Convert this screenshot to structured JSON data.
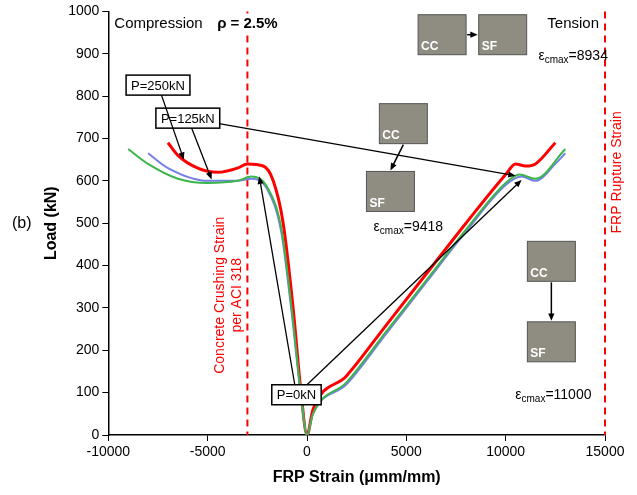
{
  "chart_data": {
    "type": "line",
    "title": "ρ = 2.5%",
    "panel": "(b)",
    "x_label": "FRP Strain (μmm/mm)",
    "y_label": "Load (kN)",
    "xlim": [
      -10000,
      15000
    ],
    "xticks": [
      -10000,
      -5000,
      0,
      5000,
      10000,
      15000
    ],
    "ylim": [
      0,
      1000
    ],
    "yticks": [
      0,
      100,
      200,
      300,
      400,
      500,
      600,
      700,
      800,
      900,
      1000
    ],
    "grid": false,
    "corner_labels": {
      "left": "Compression",
      "right": "Tension"
    },
    "series": [
      {
        "name": "P=0kN",
        "color": "#3cb54a",
        "x": [
          -9000,
          -8000,
          -6500,
          -5000,
          -3500,
          -2800,
          -2000,
          -1300,
          -800,
          -300,
          0,
          300,
          2000,
          4000,
          6000,
          8000,
          10000,
          10700,
          11500,
          13000
        ],
        "values": [
          675,
          640,
          605,
          595,
          600,
          610,
          585,
          490,
          310,
          95,
          0,
          50,
          125,
          245,
          365,
          485,
          595,
          615,
          605,
          675
        ],
        "name_at": [
          -530,
          95
        ],
        "pointers": [
          [
            -2400,
            610
          ],
          [
            10800,
            602
          ]
        ]
      },
      {
        "name": "P=125kN",
        "color": "#7480e6",
        "x": [
          -8000,
          -7000,
          -5000,
          -3500,
          -2800,
          -2000,
          -1300,
          -800,
          -300,
          0,
          300,
          2000,
          4000,
          6000,
          8000,
          10000,
          10800,
          11500,
          12500,
          13000
        ],
        "values": [
          665,
          630,
          600,
          600,
          605,
          580,
          480,
          300,
          90,
          0,
          50,
          120,
          240,
          360,
          480,
          590,
          610,
          600,
          640,
          665
        ],
        "name_at": [
          -6000,
          748
        ],
        "pointers": [
          [
            -4800,
            603
          ],
          [
            10500,
            612
          ]
        ]
      },
      {
        "name": "P=250kN",
        "color": "#ff0000",
        "x": [
          -7000,
          -6500,
          -5500,
          -4500,
          -3500,
          -3000,
          -2200,
          -1700,
          -1200,
          -700,
          -300,
          0,
          300,
          2000,
          4000,
          6000,
          8000,
          10000,
          10500,
          11000,
          11500,
          12500
        ],
        "values": [
          690,
          660,
          630,
          620,
          630,
          640,
          635,
          600,
          500,
          300,
          100,
          0,
          60,
          140,
          260,
          380,
          500,
          615,
          640,
          635,
          640,
          690
        ],
        "name_at": [
          -7500,
          826
        ],
        "pointers": [
          [
            -6200,
            650
          ]
        ]
      }
    ],
    "reference_lines": [
      {
        "x": -3000,
        "color": "#ff0000",
        "line_style": "dashed",
        "label": [
          "Concrete Crushing Strain",
          "per ACI 318"
        ]
      },
      {
        "x": 15000,
        "color": "#ff0000",
        "line_style": "dashed",
        "label": [
          "FRP Rupture Strain"
        ]
      }
    ],
    "photos": [
      [
        {
          "label": "CC",
          "x": 6800,
          "y": 945
        },
        {
          "label": "SF",
          "x": 9850,
          "y": 945
        }
      ],
      [
        {
          "label": "CC",
          "x": 4850,
          "y": 735
        },
        {
          "label": "SF",
          "x": 4200,
          "y": 575
        }
      ],
      [
        {
          "label": "CC",
          "x": 12300,
          "y": 410
        },
        {
          "label": "SF",
          "x": 12300,
          "y": 220
        }
      ]
    ],
    "notes": [
      {
        "symbol": "ε",
        "sub": "cmax",
        "text": "=8934",
        "x": 13400,
        "y": 895
      },
      {
        "symbol": "ε",
        "sub": "cmax",
        "text": "=9418",
        "x": 5100,
        "y": 490
      },
      {
        "symbol": "ε",
        "sub": "cmax",
        "text": "=11000",
        "x": 12400,
        "y": 95
      }
    ]
  }
}
